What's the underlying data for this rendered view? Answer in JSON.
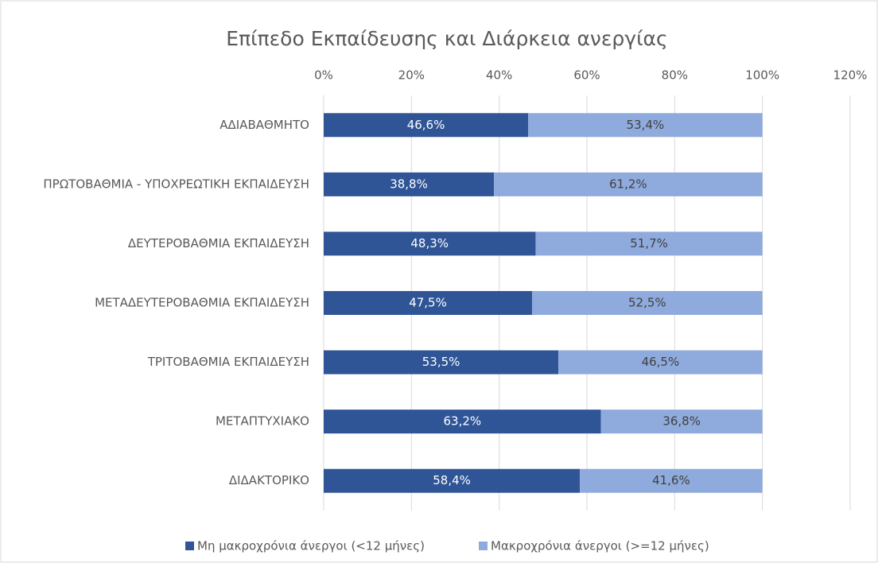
{
  "chart_data": {
    "type": "bar",
    "orientation": "horizontal",
    "stacked": true,
    "title": "Επίπεδο Εκπαίδευσης και Διάρκεια ανεργίας",
    "categories": [
      "ΑΔΙΑΒΑΘΜΗΤΟ",
      "ΠΡΩΤΟΒΑΘΜΙΑ - ΥΠΟΧΡΕΩΤΙΚΗ ΕΚΠΑΙΔΕΥΣΗ",
      "ΔΕΥΤΕΡΟΒΑΘΜΙΑ ΕΚΠΑΙΔΕΥΣΗ",
      "ΜΕΤΑΔΕΥΤΕΡΟΒΑΘΜΙΑ ΕΚΠΑΙΔΕΥΣΗ",
      "ΤΡΙΤΟΒΑΘΜΙΑ ΕΚΠΑΙΔΕΥΣΗ",
      "ΜΕΤΑΠΤΥΧΙΑΚΟ",
      "ΔΙΔΑΚΤΟΡΙΚΟ"
    ],
    "series": [
      {
        "name": "Μη μακροχρόνια άνεργοι (<12 μήνες)",
        "color": "#2f5597",
        "label_color": "#ffffff",
        "values": [
          46.6,
          38.8,
          48.3,
          47.5,
          53.5,
          63.2,
          58.4
        ],
        "value_labels": [
          "46,6%",
          "38,8%",
          "48,3%",
          "47,5%",
          "53,5%",
          "63,2%",
          "58,4%"
        ]
      },
      {
        "name": "Μακροχρόνια άνεργοι (>=12 μήνες)",
        "color": "#8faadc",
        "label_color": "#404040",
        "values": [
          53.4,
          61.2,
          51.7,
          52.5,
          46.5,
          36.8,
          41.6
        ],
        "value_labels": [
          "53,4%",
          "61,2%",
          "51,7%",
          "52,5%",
          "46,5%",
          "36,8%",
          "41,6%"
        ]
      }
    ],
    "xlim": [
      0,
      120
    ],
    "xticks": [
      {
        "value": 0,
        "label": "0%"
      },
      {
        "value": 20,
        "label": "20%"
      },
      {
        "value": 40,
        "label": "40%"
      },
      {
        "value": 60,
        "label": "60%"
      },
      {
        "value": 80,
        "label": "80%"
      },
      {
        "value": 100,
        "label": "100%"
      },
      {
        "value": 120,
        "label": "120%"
      }
    ],
    "grid": true,
    "legend": "bottom"
  }
}
